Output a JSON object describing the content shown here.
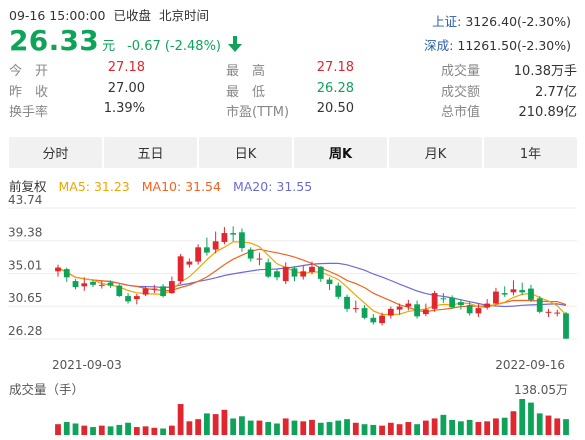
{
  "header": {
    "date": "09-16 15:00:00",
    "status": "已收盘",
    "timezone": "北京时间",
    "price": "26.33",
    "unit": "元",
    "change": "-0.67 (-2.48%)",
    "trend_icon": "arrow-down-icon"
  },
  "indices": [
    {
      "name": "上证",
      "value": "3126.40(-2.30%)"
    },
    {
      "name": "深成",
      "value": "11261.50(-2.30%)"
    }
  ],
  "stats": {
    "open_label": "今　开",
    "open": "27.18",
    "high_label": "最　高",
    "high": "27.18",
    "volume_label": "成交量",
    "volume": "10.38万手",
    "prev_label": "昨　收",
    "prev": "27.00",
    "low_label": "最　低",
    "low": "26.28",
    "amount_label": "成交额",
    "amount": "2.77亿",
    "turnover_label": "换手率",
    "turnover": "1.39%",
    "pe_label": "市盈(TTM)",
    "pe": "20.50",
    "mcap_label": "总市值",
    "mcap": "210.89亿"
  },
  "tabs": [
    {
      "label": "分时",
      "active": false
    },
    {
      "label": "五日",
      "active": false
    },
    {
      "label": "日K",
      "active": false
    },
    {
      "label": "周K",
      "active": true
    },
    {
      "label": "月K",
      "active": false
    },
    {
      "label": "1年",
      "active": false
    }
  ],
  "ma": {
    "title": "前复权",
    "ma5": "MA5: 31.23",
    "ma10": "MA10: 31.54",
    "ma20": "MA20: 31.55"
  },
  "colors": {
    "up": "#e0262e",
    "down": "#0fa35a",
    "ma5": "#f0a500",
    "ma10": "#f0641e",
    "ma20": "#6b6bdb",
    "index_name": "#2a5caa"
  },
  "chart_data": {
    "type": "candlestick",
    "y_ticks": [
      "43.74",
      "39.38",
      "35.01",
      "30.65",
      "26.28"
    ],
    "ylim": [
      26.28,
      43.74
    ],
    "x_start_label": "2021-09-03",
    "x_end_label": "2022-09-16",
    "volume_label": "成交量（手）",
    "volume_max_label": "138.05万",
    "volume_max": 138.05,
    "candles": [
      {
        "o": 35.3,
        "c": 35.8,
        "h": 36.2,
        "l": 34.6
      },
      {
        "o": 35.6,
        "c": 34.5,
        "h": 35.8,
        "l": 33.9
      },
      {
        "o": 34.0,
        "c": 33.2,
        "h": 34.3,
        "l": 32.9
      },
      {
        "o": 33.3,
        "c": 33.7,
        "h": 34.5,
        "l": 32.7
      },
      {
        "o": 33.9,
        "c": 33.5,
        "h": 34.2,
        "l": 33.2
      },
      {
        "o": 33.5,
        "c": 33.5,
        "h": 34.0,
        "l": 33.0
      },
      {
        "o": 33.8,
        "c": 33.4,
        "h": 34.1,
        "l": 33.1
      },
      {
        "o": 33.4,
        "c": 32.0,
        "h": 33.6,
        "l": 31.9
      },
      {
        "o": 32.0,
        "c": 31.3,
        "h": 32.4,
        "l": 31.0
      },
      {
        "o": 31.6,
        "c": 32.0,
        "h": 32.3,
        "l": 30.9
      },
      {
        "o": 32.2,
        "c": 33.0,
        "h": 33.3,
        "l": 32.0
      },
      {
        "o": 33.0,
        "c": 33.0,
        "h": 33.5,
        "l": 32.4
      },
      {
        "o": 33.3,
        "c": 32.0,
        "h": 33.6,
        "l": 31.8
      },
      {
        "o": 32.4,
        "c": 34.0,
        "h": 34.6,
        "l": 32.3
      },
      {
        "o": 34.0,
        "c": 37.3,
        "h": 37.6,
        "l": 33.6
      },
      {
        "o": 36.2,
        "c": 36.6,
        "h": 37.0,
        "l": 35.8
      },
      {
        "o": 36.6,
        "c": 38.5,
        "h": 38.9,
        "l": 36.2
      },
      {
        "o": 38.5,
        "c": 37.8,
        "h": 39.8,
        "l": 37.4
      },
      {
        "o": 38.2,
        "c": 39.3,
        "h": 40.6,
        "l": 37.7
      },
      {
        "o": 39.2,
        "c": 40.4,
        "h": 41.2,
        "l": 38.9
      },
      {
        "o": 40.4,
        "c": 40.2,
        "h": 41.3,
        "l": 39.3
      },
      {
        "o": 40.5,
        "c": 38.4,
        "h": 41.0,
        "l": 37.9
      },
      {
        "o": 38.2,
        "c": 37.0,
        "h": 38.5,
        "l": 36.6
      },
      {
        "o": 37.0,
        "c": 37.0,
        "h": 37.8,
        "l": 36.1
      },
      {
        "o": 36.5,
        "c": 34.6,
        "h": 37.0,
        "l": 34.4
      },
      {
        "o": 35.3,
        "c": 34.5,
        "h": 35.6,
        "l": 34.1
      },
      {
        "o": 34.0,
        "c": 35.9,
        "h": 36.5,
        "l": 33.6
      },
      {
        "o": 35.7,
        "c": 34.6,
        "h": 36.0,
        "l": 34.0
      },
      {
        "o": 34.6,
        "c": 35.3,
        "h": 36.0,
        "l": 34.2
      },
      {
        "o": 35.2,
        "c": 35.9,
        "h": 36.6,
        "l": 34.9
      },
      {
        "o": 35.9,
        "c": 34.3,
        "h": 36.0,
        "l": 33.9
      },
      {
        "o": 34.2,
        "c": 33.6,
        "h": 34.5,
        "l": 32.8
      },
      {
        "o": 33.4,
        "c": 31.9,
        "h": 33.8,
        "l": 31.6
      },
      {
        "o": 31.9,
        "c": 30.3,
        "h": 32.2,
        "l": 29.9
      },
      {
        "o": 30.4,
        "c": 30.4,
        "h": 31.4,
        "l": 29.8
      },
      {
        "o": 30.4,
        "c": 29.1,
        "h": 30.8,
        "l": 28.9
      },
      {
        "o": 29.1,
        "c": 28.5,
        "h": 29.6,
        "l": 28.2
      },
      {
        "o": 28.4,
        "c": 29.4,
        "h": 29.8,
        "l": 28.1
      },
      {
        "o": 29.4,
        "c": 30.3,
        "h": 30.6,
        "l": 29.0
      },
      {
        "o": 30.2,
        "c": 30.6,
        "h": 31.0,
        "l": 29.5
      },
      {
        "o": 30.6,
        "c": 31.0,
        "h": 31.5,
        "l": 30.1
      },
      {
        "o": 30.9,
        "c": 29.3,
        "h": 31.4,
        "l": 29.0
      },
      {
        "o": 29.6,
        "c": 30.2,
        "h": 31.0,
        "l": 29.3
      },
      {
        "o": 30.3,
        "c": 32.4,
        "h": 32.7,
        "l": 29.9
      },
      {
        "o": 31.7,
        "c": 31.6,
        "h": 32.4,
        "l": 31.1
      },
      {
        "o": 31.8,
        "c": 30.5,
        "h": 32.1,
        "l": 30.3
      },
      {
        "o": 31.2,
        "c": 30.8,
        "h": 31.6,
        "l": 30.2
      },
      {
        "o": 30.8,
        "c": 29.7,
        "h": 31.2,
        "l": 29.4
      },
      {
        "o": 29.7,
        "c": 30.4,
        "h": 31.0,
        "l": 29.2
      },
      {
        "o": 30.5,
        "c": 31.0,
        "h": 31.6,
        "l": 30.2
      },
      {
        "o": 31.0,
        "c": 32.6,
        "h": 33.1,
        "l": 30.9
      },
      {
        "o": 32.4,
        "c": 32.2,
        "h": 33.3,
        "l": 31.9
      },
      {
        "o": 32.5,
        "c": 32.9,
        "h": 34.1,
        "l": 32.1
      },
      {
        "o": 32.8,
        "c": 32.5,
        "h": 33.8,
        "l": 32.1
      },
      {
        "o": 33.0,
        "c": 31.5,
        "h": 33.5,
        "l": 31.2
      },
      {
        "o": 31.7,
        "c": 29.9,
        "h": 32.0,
        "l": 29.7
      },
      {
        "o": 29.8,
        "c": 29.9,
        "h": 30.3,
        "l": 29.2
      },
      {
        "o": 29.8,
        "c": 29.8,
        "h": 30.2,
        "l": 29.3
      },
      {
        "o": 29.7,
        "c": 26.33,
        "h": 29.9,
        "l": 26.28
      }
    ],
    "volumes": [
      30,
      36,
      32,
      26,
      22,
      26,
      24,
      28,
      34,
      22,
      24,
      20,
      18,
      26,
      86,
      38,
      44,
      60,
      58,
      70,
      46,
      52,
      40,
      40,
      36,
      32,
      46,
      40,
      38,
      42,
      34,
      36,
      40,
      44,
      34,
      30,
      28,
      26,
      34,
      30,
      36,
      30,
      40,
      46,
      56,
      42,
      38,
      42,
      36,
      38,
      46,
      48,
      66,
      100,
      90,
      60,
      54,
      46,
      44
    ]
  }
}
